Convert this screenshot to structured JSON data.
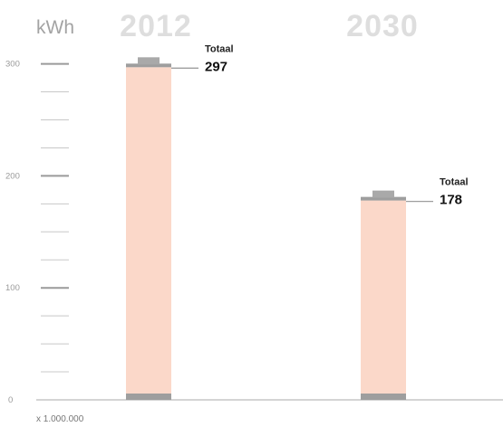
{
  "chart_data": {
    "type": "bar",
    "unit_label": "kWh",
    "multiplier_label": "x 1.000.000",
    "categories": [
      "2012",
      "2030"
    ],
    "values": [
      297,
      178
    ],
    "total_label": "Totaal",
    "ylim": [
      0,
      300
    ],
    "y_ticks": [
      0,
      100,
      200,
      300
    ],
    "minor_tick_step": 25,
    "grid": false,
    "colors": {
      "bar": "#fbd8c9",
      "cap": "#9e9e9e",
      "cap_light": "#a9a9a9",
      "axis": "#aaaaaa",
      "leader": "#9e9e9e"
    }
  }
}
